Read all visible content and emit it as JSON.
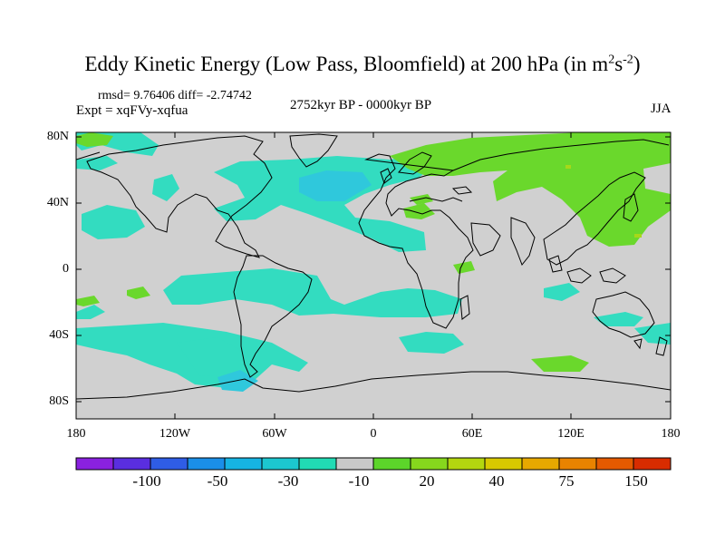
{
  "title": {
    "main": "Eddy Kinetic Energy (Low Pass, Bloomfield) at 200 hPa (in m",
    "sup1": "2",
    "mid": "s",
    "sup2": "-2",
    "end": ")"
  },
  "stats": "rmsd= 9.76406 diff= -2.74742",
  "experiment": "Expt = xqFVy-xqfua",
  "period": "2752kyr BP - 0000kyr BP",
  "season": "JJA",
  "lat_labels": [
    "80N",
    "40N",
    "0",
    "40S",
    "80S"
  ],
  "lon_labels": [
    "180",
    "120W",
    "60W",
    "0",
    "60E",
    "120E",
    "180"
  ],
  "colorbar": {
    "colors": [
      "#8a21e0",
      "#5a2ee0",
      "#2f5de6",
      "#1a8fe8",
      "#16b4e3",
      "#1cc7cf",
      "#21dbb4",
      "#c9c9c9",
      "#5cd52a",
      "#86d71d",
      "#b3d60f",
      "#d8c900",
      "#e7a800",
      "#e98300",
      "#e45a00",
      "#d82c00"
    ],
    "labels": [
      "-100",
      "-50",
      "-30",
      "-10",
      "20",
      "40",
      "75",
      "150"
    ]
  },
  "map_colors": {
    "background": "#d0d0d0",
    "negative": "#35dcc0",
    "strong_negative": "#2cc4dc",
    "positive": "#6ad82c",
    "positive_strong": "#a6d81a",
    "coast": "#000000"
  }
}
